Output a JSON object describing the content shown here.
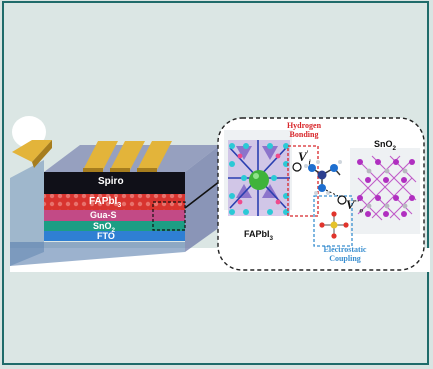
{
  "device_layers": {
    "spiro": "Spiro",
    "fapbi3": "FAPbI",
    "fapbi3_sub": "3",
    "guas": "Gua-S",
    "sno2": "SnO",
    "sno2_sub": "2",
    "fto": "FTO"
  },
  "inset": {
    "hydrogen_bonding": "Hydrogen Bonding",
    "electrostatic_coupling": "Electrostatic Coupling",
    "fapbi3_label": "FAPbI",
    "fapbi3_label_sub": "3",
    "sno2_label": "SnO",
    "sno2_label_sub": "2",
    "vi_symbol": "V",
    "vi_sup": "'",
    "vi_sub": "i",
    "vo_symbol": "V",
    "vo_sup": "··",
    "vo_sub": "o"
  },
  "colors": {
    "frame": "#1f6b6a",
    "gold_electrode": "#e3b43a",
    "spiro": "#101018",
    "fapbi3": "#d8342f",
    "guas": "#c24a86",
    "sno2": "#1d9e84",
    "fto": "#2f7fd3",
    "hbond_box": "#d8262a",
    "ecoupling_box": "#3a8fd0"
  }
}
